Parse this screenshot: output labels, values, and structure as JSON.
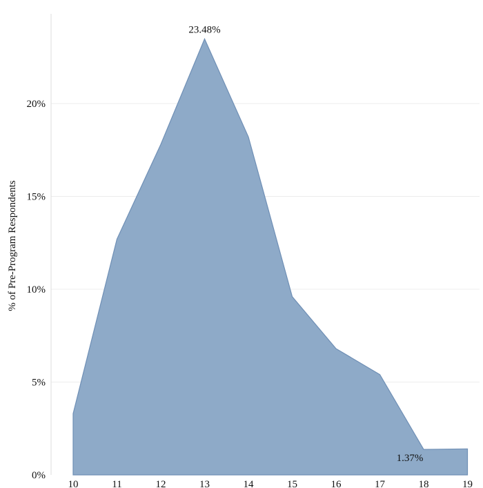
{
  "chart_data": {
    "type": "area",
    "title": "",
    "xlabel": "",
    "ylabel": "% of Pre-Program Respondents",
    "x": [
      10,
      11,
      12,
      13,
      14,
      15,
      16,
      17,
      18,
      19
    ],
    "x_tick_labels": [
      "10",
      "11",
      "12",
      "13",
      "14",
      "15",
      "16",
      "17",
      "18",
      "19"
    ],
    "series": [
      {
        "values": [
          3.3,
          12.7,
          17.8,
          23.48,
          18.2,
          9.6,
          6.8,
          5.4,
          1.37,
          1.4
        ],
        "color": "#8eaac8",
        "stroke": "#6f8fb5"
      }
    ],
    "ylim": [
      0,
      25
    ],
    "y_ticks": [
      0,
      5,
      10,
      15,
      20
    ],
    "y_tick_labels": [
      "0%",
      "5%",
      "10%",
      "15%",
      "20%"
    ],
    "annotations": [
      {
        "x": 13,
        "text": "23.48%"
      },
      {
        "x": 18,
        "text": "1.37%"
      }
    ],
    "grid": true,
    "legend": "none"
  }
}
